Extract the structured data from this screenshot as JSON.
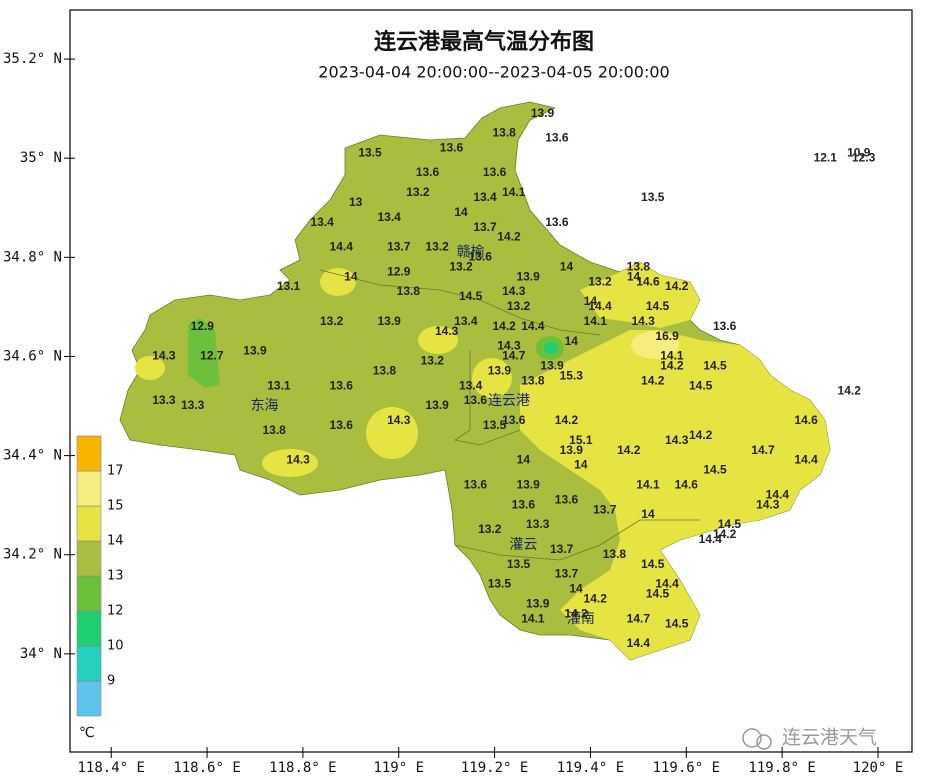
{
  "map": {
    "title": "连云港最高气温分布图",
    "subtitle": "2023-04-04 20:00:00--2023-04-05 20:00:00",
    "xlim": [
      118.314,
      120.071
    ],
    "ylim": [
      33.802,
      35.299
    ],
    "xticks": [
      {
        "value": 118.4,
        "label": "118.4° E"
      },
      {
        "value": 118.6,
        "label": "118.6° E"
      },
      {
        "value": 118.8,
        "label": "118.8° E"
      },
      {
        "value": 119,
        "label": "119° E"
      },
      {
        "value": 119.2,
        "label": "119.2° E"
      },
      {
        "value": 119.4,
        "label": "119.4° E"
      },
      {
        "value": 119.6,
        "label": "119.6° E"
      },
      {
        "value": 119.8,
        "label": "119.8° E"
      },
      {
        "value": 120,
        "label": "120° E"
      }
    ],
    "yticks": [
      {
        "value": 34,
        "label": "34° N"
      },
      {
        "value": 34.2,
        "label": "34.2° N"
      },
      {
        "value": 34.4,
        "label": "34.4° N"
      },
      {
        "value": 34.6,
        "label": "34.6° N"
      },
      {
        "value": 34.8,
        "label": "34.8° N"
      },
      {
        "value": 35,
        "label": "35° N"
      },
      {
        "value": 35.2,
        "label": "35.2° N"
      }
    ],
    "places": [
      {
        "name": "赣榆",
        "lon": 119.15,
        "lat": 34.81
      },
      {
        "name": "连云港",
        "lon": 119.23,
        "lat": 34.51
      },
      {
        "name": "东海",
        "lon": 118.72,
        "lat": 34.5
      },
      {
        "name": "灌云",
        "lon": 119.26,
        "lat": 34.22
      },
      {
        "name": "灌南",
        "lon": 119.38,
        "lat": 34.07
      }
    ],
    "stations": [
      {
        "lon": 119.3,
        "lat": 35.09,
        "value": 13.9
      },
      {
        "lon": 119.22,
        "lat": 35.05,
        "value": 13.8
      },
      {
        "lon": 119.33,
        "lat": 35.04,
        "value": 13.6
      },
      {
        "lon": 119.11,
        "lat": 35.02,
        "value": 13.6
      },
      {
        "lon": 118.94,
        "lat": 35.01,
        "value": 13.5
      },
      {
        "lon": 119.06,
        "lat": 34.97,
        "value": 13.6
      },
      {
        "lon": 119.2,
        "lat": 34.97,
        "value": 13.6
      },
      {
        "lon": 119.24,
        "lat": 34.93,
        "value": 14.1
      },
      {
        "lon": 119.04,
        "lat": 34.93,
        "value": 13.2
      },
      {
        "lon": 119.18,
        "lat": 34.92,
        "value": 13.4
      },
      {
        "lon": 119.53,
        "lat": 34.92,
        "value": 13.5
      },
      {
        "lon": 118.91,
        "lat": 34.91,
        "value": 13.0
      },
      {
        "lon": 119.13,
        "lat": 34.89,
        "value": 14.0
      },
      {
        "lon": 119.33,
        "lat": 34.87,
        "value": 13.6
      },
      {
        "lon": 118.84,
        "lat": 34.87,
        "value": 13.4
      },
      {
        "lon": 118.98,
        "lat": 34.88,
        "value": 13.4
      },
      {
        "lon": 119.18,
        "lat": 34.86,
        "value": 13.7
      },
      {
        "lon": 119.23,
        "lat": 34.84,
        "value": 14.2
      },
      {
        "lon": 118.88,
        "lat": 34.82,
        "value": 14.4
      },
      {
        "lon": 119.0,
        "lat": 34.82,
        "value": 13.7
      },
      {
        "lon": 119.08,
        "lat": 34.82,
        "value": 13.2
      },
      {
        "lon": 119.17,
        "lat": 34.8,
        "value": 13.6
      },
      {
        "lon": 119.13,
        "lat": 34.78,
        "value": 13.2
      },
      {
        "lon": 119.35,
        "lat": 34.78,
        "value": 14.0
      },
      {
        "lon": 119.5,
        "lat": 34.78,
        "value": 13.8
      },
      {
        "lon": 119.0,
        "lat": 34.77,
        "value": 12.9
      },
      {
        "lon": 118.9,
        "lat": 34.76,
        "value": 14.0
      },
      {
        "lon": 119.27,
        "lat": 34.76,
        "value": 13.9
      },
      {
        "lon": 118.77,
        "lat": 34.74,
        "value": 13.1
      },
      {
        "lon": 119.02,
        "lat": 34.73,
        "value": 13.8
      },
      {
        "lon": 119.24,
        "lat": 34.73,
        "value": 14.3
      },
      {
        "lon": 119.15,
        "lat": 34.72,
        "value": 14.5
      },
      {
        "lon": 119.42,
        "lat": 34.75,
        "value": 13.2
      },
      {
        "lon": 119.58,
        "lat": 34.74,
        "value": 14.2
      },
      {
        "lon": 119.4,
        "lat": 34.71,
        "value": 14.0
      },
      {
        "lon": 119.42,
        "lat": 34.7,
        "value": 14.4
      },
      {
        "lon": 119.54,
        "lat": 34.7,
        "value": 14.5
      },
      {
        "lon": 119.25,
        "lat": 34.7,
        "value": 13.2
      },
      {
        "lon": 118.86,
        "lat": 34.67,
        "value": 13.2
      },
      {
        "lon": 118.98,
        "lat": 34.67,
        "value": 13.9
      },
      {
        "lon": 119.14,
        "lat": 34.67,
        "value": 13.4
      },
      {
        "lon": 119.22,
        "lat": 34.66,
        "value": 14.2
      },
      {
        "lon": 119.28,
        "lat": 34.66,
        "value": 14.4
      },
      {
        "lon": 119.41,
        "lat": 34.67,
        "value": 14.1
      },
      {
        "lon": 119.51,
        "lat": 34.67,
        "value": 14.3
      },
      {
        "lon": 119.68,
        "lat": 34.66,
        "value": 13.6
      },
      {
        "lon": 119.1,
        "lat": 34.65,
        "value": 14.3
      },
      {
        "lon": 118.59,
        "lat": 34.66,
        "value": 12.9
      },
      {
        "lon": 119.36,
        "lat": 34.63,
        "value": 14.0
      },
      {
        "lon": 119.56,
        "lat": 34.64,
        "value": 16.9
      },
      {
        "lon": 119.23,
        "lat": 34.62,
        "value": 14.3
      },
      {
        "lon": 119.24,
        "lat": 34.6,
        "value": 14.7
      },
      {
        "lon": 118.51,
        "lat": 34.6,
        "value": 14.3
      },
      {
        "lon": 118.61,
        "lat": 34.6,
        "value": 12.7
      },
      {
        "lon": 118.7,
        "lat": 34.61,
        "value": 13.9
      },
      {
        "lon": 119.07,
        "lat": 34.59,
        "value": 13.2
      },
      {
        "lon": 119.57,
        "lat": 34.6,
        "value": 14.1
      },
      {
        "lon": 119.21,
        "lat": 34.57,
        "value": 13.9
      },
      {
        "lon": 119.32,
        "lat": 34.58,
        "value": 13.9
      },
      {
        "lon": 119.36,
        "lat": 34.56,
        "value": 15.3
      },
      {
        "lon": 118.97,
        "lat": 34.57,
        "value": 13.8
      },
      {
        "lon": 119.57,
        "lat": 34.58,
        "value": 14.2
      },
      {
        "lon": 119.66,
        "lat": 34.58,
        "value": 14.5
      },
      {
        "lon": 119.28,
        "lat": 34.55,
        "value": 13.8
      },
      {
        "lon": 119.53,
        "lat": 34.55,
        "value": 14.2
      },
      {
        "lon": 118.75,
        "lat": 34.54,
        "value": 13.1
      },
      {
        "lon": 118.88,
        "lat": 34.54,
        "value": 13.6
      },
      {
        "lon": 119.15,
        "lat": 34.54,
        "value": 13.4
      },
      {
        "lon": 119.63,
        "lat": 34.54,
        "value": 14.5
      },
      {
        "lon": 119.94,
        "lat": 34.53,
        "value": 14.2
      },
      {
        "lon": 118.51,
        "lat": 34.51,
        "value": 13.3
      },
      {
        "lon": 118.57,
        "lat": 34.5,
        "value": 13.3
      },
      {
        "lon": 119.16,
        "lat": 34.51,
        "value": 13.6
      },
      {
        "lon": 119.08,
        "lat": 34.5,
        "value": 13.9
      },
      {
        "lon": 119.0,
        "lat": 34.47,
        "value": 14.3
      },
      {
        "lon": 119.35,
        "lat": 34.47,
        "value": 14.2
      },
      {
        "lon": 119.24,
        "lat": 34.47,
        "value": 13.6
      },
      {
        "lon": 119.2,
        "lat": 34.46,
        "value": 13.5
      },
      {
        "lon": 119.85,
        "lat": 34.47,
        "value": 14.6
      },
      {
        "lon": 118.74,
        "lat": 34.45,
        "value": 13.8
      },
      {
        "lon": 118.88,
        "lat": 34.46,
        "value": 13.6
      },
      {
        "lon": 119.38,
        "lat": 34.43,
        "value": 15.1
      },
      {
        "lon": 119.58,
        "lat": 34.43,
        "value": 14.3
      },
      {
        "lon": 119.63,
        "lat": 34.44,
        "value": 14.2
      },
      {
        "lon": 119.36,
        "lat": 34.41,
        "value": 13.9
      },
      {
        "lon": 119.48,
        "lat": 34.41,
        "value": 14.2
      },
      {
        "lon": 119.76,
        "lat": 34.41,
        "value": 14.7
      },
      {
        "lon": 119.26,
        "lat": 34.39,
        "value": 14.0
      },
      {
        "lon": 119.38,
        "lat": 34.38,
        "value": 14.0
      },
      {
        "lon": 118.79,
        "lat": 34.39,
        "value": 14.3
      },
      {
        "lon": 119.85,
        "lat": 34.39,
        "value": 14.4
      },
      {
        "lon": 119.66,
        "lat": 34.37,
        "value": 14.5
      },
      {
        "lon": 119.16,
        "lat": 34.34,
        "value": 13.6
      },
      {
        "lon": 119.27,
        "lat": 34.34,
        "value": 13.9
      },
      {
        "lon": 119.52,
        "lat": 34.34,
        "value": 14.1
      },
      {
        "lon": 119.6,
        "lat": 34.34,
        "value": 14.6
      },
      {
        "lon": 119.79,
        "lat": 34.32,
        "value": 14.4
      },
      {
        "lon": 119.26,
        "lat": 34.3,
        "value": 13.6
      },
      {
        "lon": 119.35,
        "lat": 34.31,
        "value": 13.6
      },
      {
        "lon": 119.43,
        "lat": 34.29,
        "value": 13.7
      },
      {
        "lon": 119.77,
        "lat": 34.3,
        "value": 14.3
      },
      {
        "lon": 119.52,
        "lat": 34.28,
        "value": 14.0
      },
      {
        "lon": 119.69,
        "lat": 34.26,
        "value": 14.5
      },
      {
        "lon": 119.29,
        "lat": 34.26,
        "value": 13.3
      },
      {
        "lon": 119.19,
        "lat": 34.25,
        "value": 13.2
      },
      {
        "lon": 119.68,
        "lat": 34.24,
        "value": 14.2
      },
      {
        "lon": 119.65,
        "lat": 34.23,
        "value": 14.4
      },
      {
        "lon": 119.34,
        "lat": 34.21,
        "value": 13.7
      },
      {
        "lon": 119.45,
        "lat": 34.2,
        "value": 13.8
      },
      {
        "lon": 119.25,
        "lat": 34.18,
        "value": 13.5
      },
      {
        "lon": 119.53,
        "lat": 34.18,
        "value": 14.5
      },
      {
        "lon": 119.35,
        "lat": 34.16,
        "value": 13.7
      },
      {
        "lon": 119.21,
        "lat": 34.14,
        "value": 13.5
      },
      {
        "lon": 119.56,
        "lat": 34.14,
        "value": 14.4
      },
      {
        "lon": 119.37,
        "lat": 34.13,
        "value": 14.0
      },
      {
        "lon": 119.54,
        "lat": 34.12,
        "value": 14.5
      },
      {
        "lon": 119.41,
        "lat": 34.11,
        "value": 14.2
      },
      {
        "lon": 119.29,
        "lat": 34.1,
        "value": 13.9
      },
      {
        "lon": 119.37,
        "lat": 34.08,
        "value": 14.2
      },
      {
        "lon": 119.5,
        "lat": 34.07,
        "value": 14.7
      },
      {
        "lon": 119.28,
        "lat": 34.07,
        "value": 14.1
      },
      {
        "lon": 119.58,
        "lat": 34.06,
        "value": 14.5
      },
      {
        "lon": 119.5,
        "lat": 34.02,
        "value": 14.4
      },
      {
        "lon": 119.89,
        "lat": 35.0,
        "value": 12.1
      },
      {
        "lon": 119.96,
        "lat": 35.01,
        "value": 10.9
      },
      {
        "lon": 119.97,
        "lat": 35.0,
        "value": 12.3
      },
      {
        "lon": 119.49,
        "lat": 34.76,
        "value": 14.0
      },
      {
        "lon": 119.52,
        "lat": 34.75,
        "value": 14.6
      }
    ],
    "legend": {
      "unit": "℃",
      "levels": [
        9,
        10,
        12,
        13,
        14,
        15,
        17
      ],
      "colors": [
        "#5ec4ee",
        "#22d2be",
        "#1fcf72",
        "#6cc03c",
        "#a9be3f",
        "#e6e443",
        "#f4ef7c",
        "#f7b400"
      ]
    }
  },
  "watermark": "连云港天气"
}
